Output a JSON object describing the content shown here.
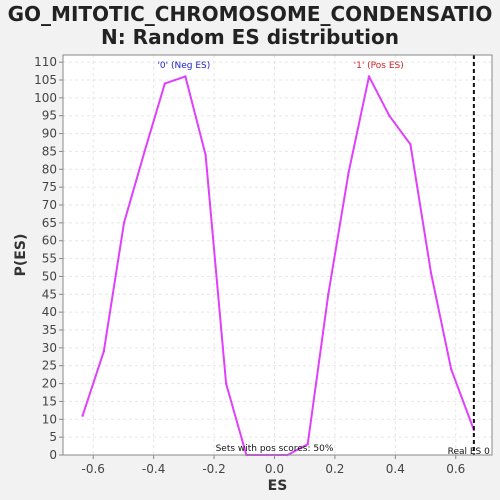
{
  "chart_data": {
    "type": "line",
    "title_lines": [
      "GO_MITOTIC_CHROMOSOME_CONDENSATIO",
      "N: Random ES distribution"
    ],
    "xlabel": "ES",
    "ylabel": "P(ES)",
    "xlim": [
      -0.7,
      0.72
    ],
    "ylim": [
      0,
      112
    ],
    "xticks": [
      -0.6,
      -0.4,
      -0.2,
      0.0,
      0.2,
      0.4,
      0.6
    ],
    "xtick_labels": [
      "-0.6",
      "-0.4",
      "-0.2",
      "0.0",
      "0.2",
      "0.4",
      "0.6"
    ],
    "yticks": [
      0,
      5,
      10,
      15,
      20,
      25,
      30,
      35,
      40,
      45,
      50,
      55,
      60,
      65,
      70,
      75,
      80,
      85,
      90,
      95,
      100,
      105,
      110
    ],
    "ytick_labels": [
      "0",
      "5",
      "10",
      "15",
      "20",
      "25",
      "30",
      "35",
      "40",
      "45",
      "50",
      "55",
      "60",
      "65",
      "70",
      "75",
      "80",
      "85",
      "90",
      "95",
      "100",
      "105",
      "110"
    ],
    "grid": true,
    "series": [
      {
        "color": "#e040fb",
        "x": [
          -0.635,
          -0.565,
          -0.498,
          -0.43,
          -0.363,
          -0.295,
          -0.228,
          -0.16,
          -0.093,
          -0.025,
          0.043,
          0.11,
          0.178,
          0.245,
          0.313,
          0.38,
          0.45,
          0.518,
          0.585,
          0.66
        ],
        "y": [
          11,
          29,
          65,
          85,
          104,
          106,
          84,
          20,
          0,
          0,
          0,
          3,
          45,
          79,
          106,
          95,
          87,
          51,
          24,
          7
        ]
      }
    ],
    "annotations": {
      "neg_label": "'0' (Neg ES)",
      "neg_x": -0.3,
      "neg_color": "#2222cc",
      "pos_label": "'1' (Pos ES)",
      "pos_x": 0.345,
      "pos_color": "#cc2222",
      "sets_text": "Sets with pos scores: 50%",
      "real_es_label": "Real ES 0",
      "real_es_x": 0.66
    }
  }
}
